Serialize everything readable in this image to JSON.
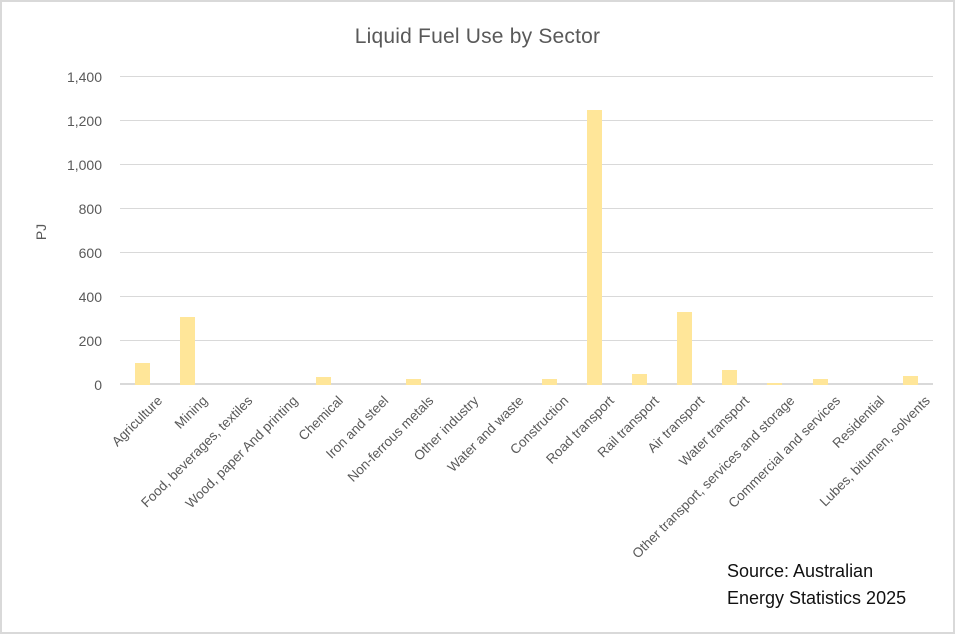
{
  "window": {
    "background_color": "#ffffff",
    "border_color": "#d9d9d9"
  },
  "chart_data": {
    "type": "bar",
    "title": "Liquid Fuel Use by Sector",
    "xlabel": "",
    "ylabel": "PJ",
    "ylim": [
      0,
      1400
    ],
    "grid": true,
    "legend": "none",
    "bar_color": "#ffe699",
    "gridline_color": "#d9d9d9",
    "text_color": "#595959",
    "yticks": [
      0,
      200,
      400,
      600,
      800,
      1000,
      1200,
      1400
    ],
    "ytick_labels": [
      "0",
      "200",
      "400",
      "600",
      "800",
      "1,000",
      "1,200",
      "1,400"
    ],
    "categories": [
      "Agriculture",
      "Mining",
      "Food, beverages, textiles",
      "Wood, paper And printing",
      "Chemical",
      "Iron and steel",
      "Non-ferrous metals",
      "Other industry",
      "Water and waste",
      "Construction",
      "Road transport",
      "Rail transport",
      "Air transport",
      "Water transport",
      "Other transport, services and storage",
      "Commercial and services",
      "Residential",
      "Lubes, bitumen, solvents"
    ],
    "values": [
      100,
      310,
      0,
      0,
      38,
      0,
      28,
      0,
      0,
      26,
      1250,
      50,
      330,
      68,
      7,
      26,
      0,
      40
    ]
  },
  "annotations": {
    "source_line1": "Source: Australian",
    "source_line2": "Energy Statistics 2025"
  }
}
